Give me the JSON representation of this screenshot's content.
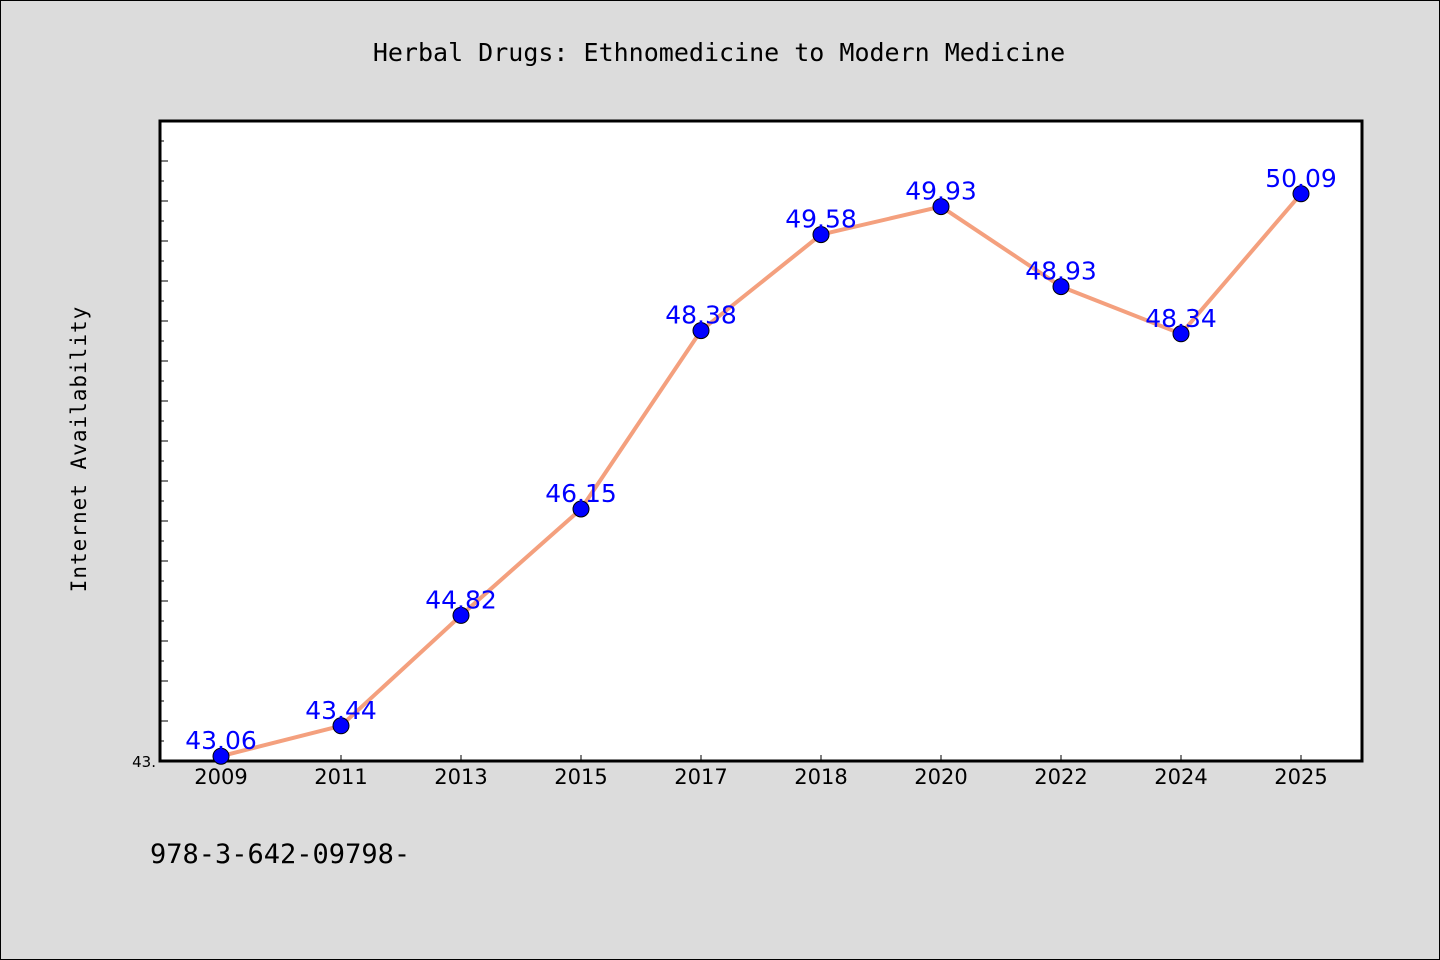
{
  "chart_data": {
    "type": "line",
    "title": "Herbal Drugs: Ethnomedicine to Modern Medicine",
    "xlabel": "",
    "ylabel": "Internet Availability",
    "categories": [
      "2009",
      "2011",
      "2013",
      "2015",
      "2017",
      "2018",
      "2020",
      "2022",
      "2024",
      "2025"
    ],
    "series": [
      {
        "values": [
          43.06,
          43.44,
          44.82,
          46.15,
          48.38,
          49.58,
          49.93,
          48.93,
          48.34,
          50.09
        ],
        "labels": [
          "43.06",
          "43.44",
          "44.82",
          "46.15",
          "48.38",
          "49.58",
          "49.93",
          "48.93",
          "48.34",
          "50.09"
        ]
      }
    ],
    "ylim": [
      43.0,
      51.0
    ],
    "y_tick_labels": [
      "43."
    ],
    "grid": false,
    "colors": {
      "line": "#f4a07e",
      "marker": "#0000ff",
      "label": "#0000ff",
      "background": "#dcdcdc",
      "plot_background": "#ffffff"
    }
  },
  "footer": {
    "text": "978-3-642-09798-"
  }
}
